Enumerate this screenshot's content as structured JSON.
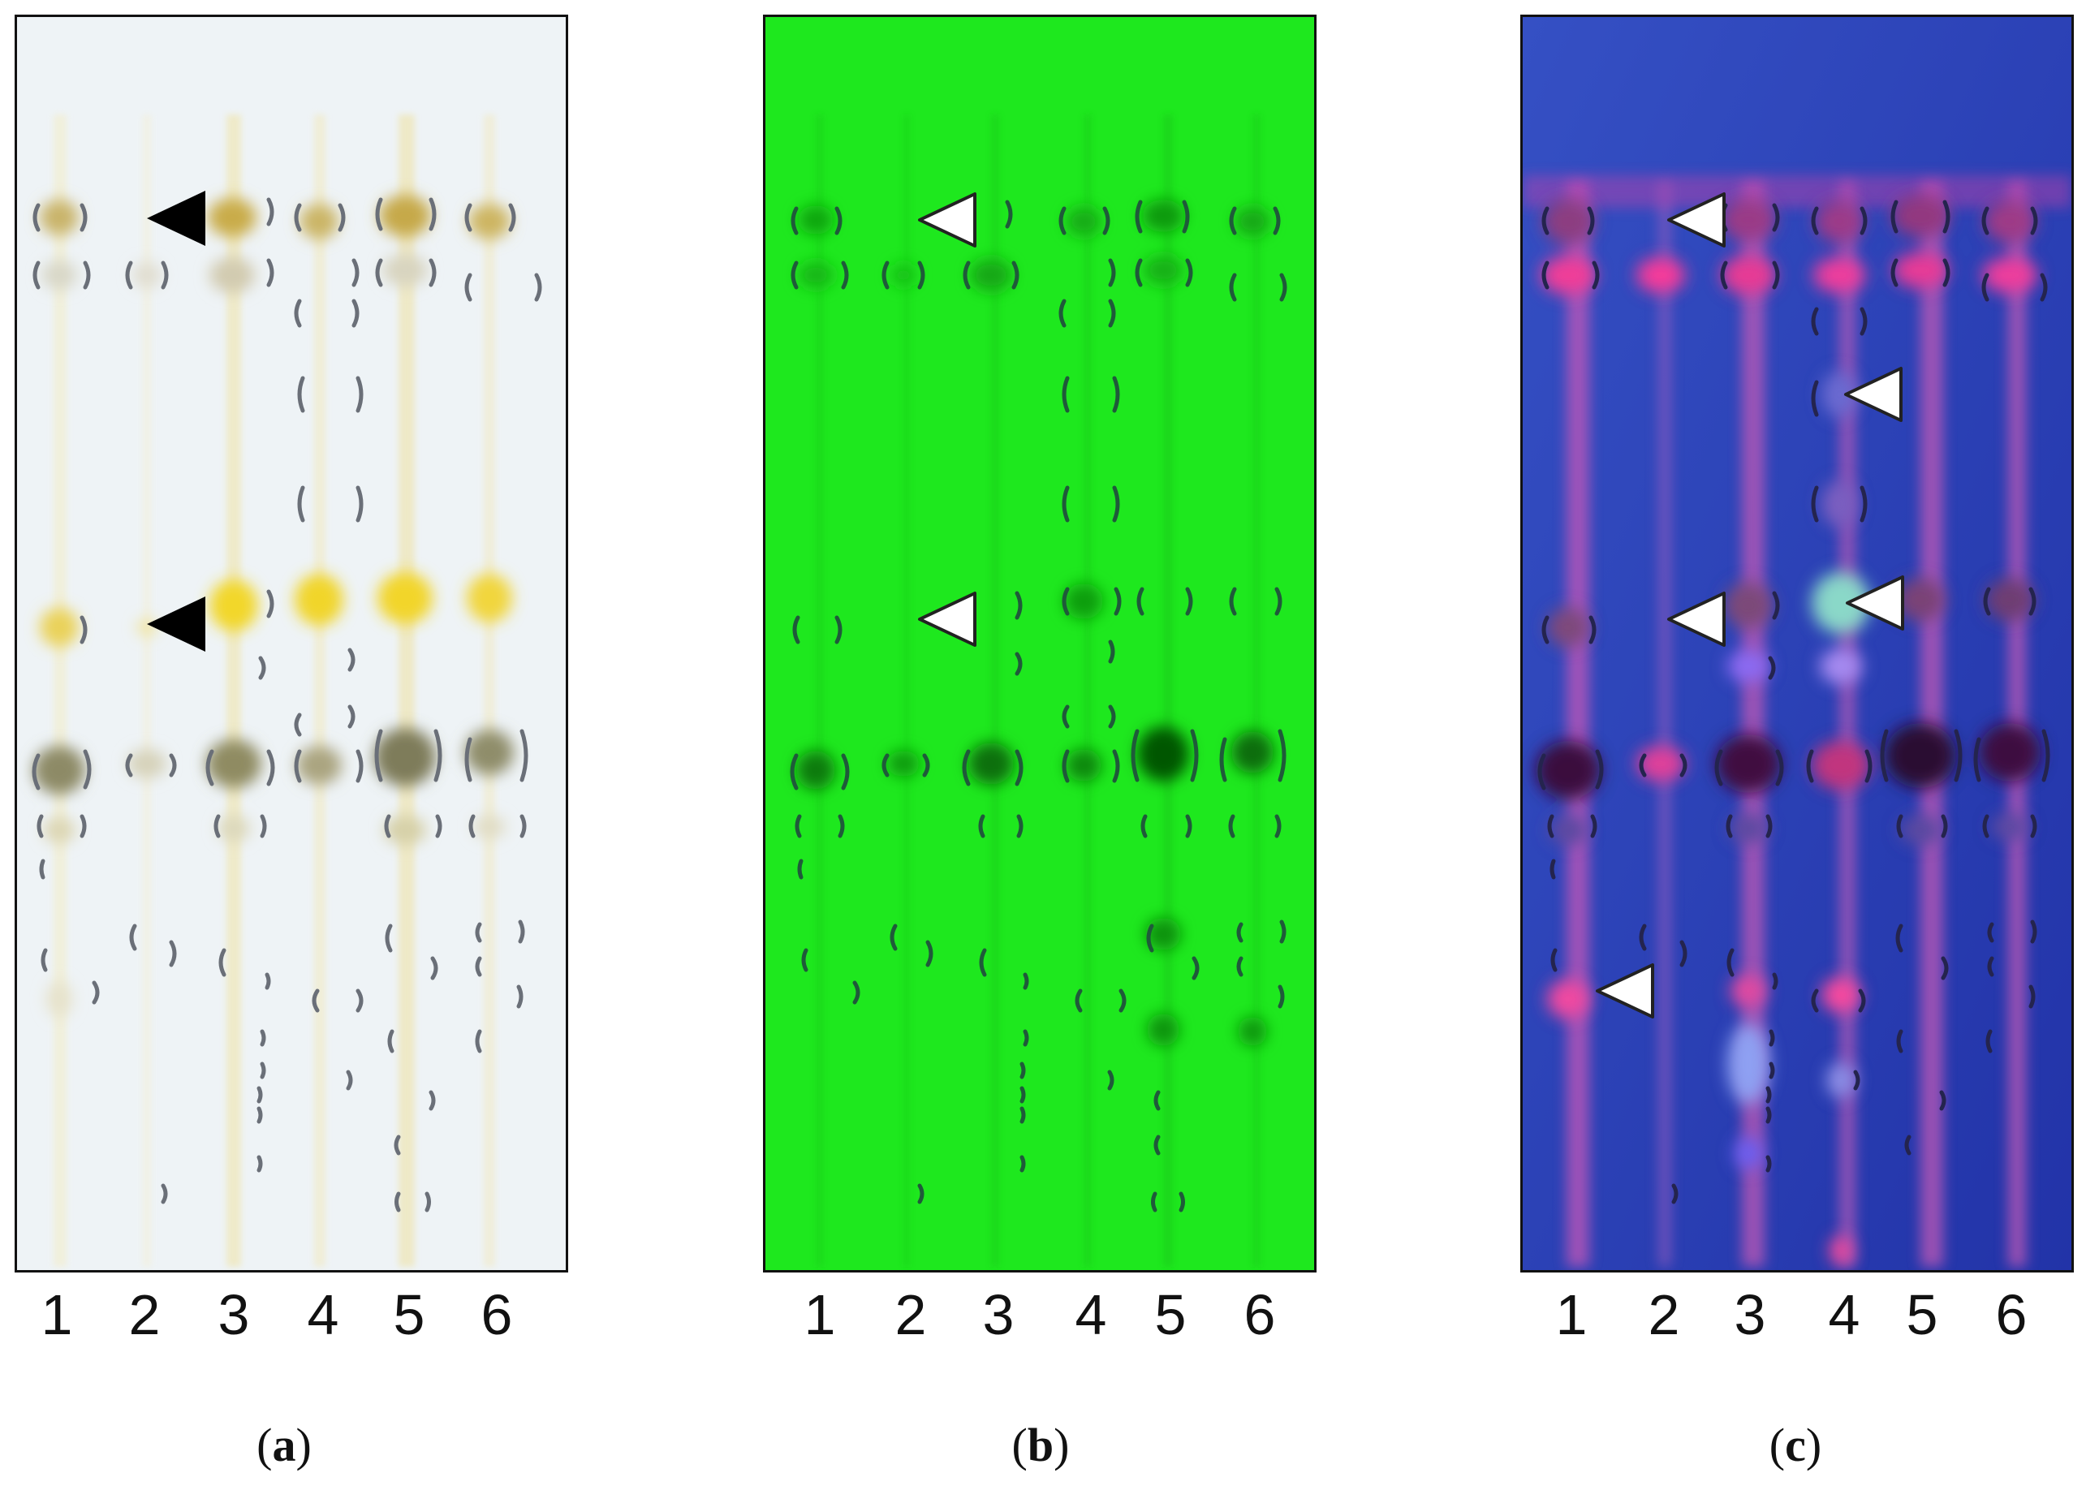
{
  "panels": [
    {
      "id": "a",
      "caption_open": "(",
      "caption_letter": "a",
      "caption_close": ")",
      "background": "#eef3f6",
      "lanes": [
        "1",
        "2",
        "3",
        "4",
        "5",
        "6"
      ],
      "markers": [
        {
          "lane": 2,
          "rf": 0.84,
          "fill": "#000000"
        },
        {
          "lane": 2,
          "rf": 0.51,
          "fill": "#000000"
        }
      ]
    },
    {
      "id": "b",
      "caption_open": "(",
      "caption_letter": "b",
      "caption_close": ")",
      "background": "#1ee81e",
      "lanes": [
        "1",
        "2",
        "3",
        "4",
        "5",
        "6"
      ],
      "markers": [
        {
          "lane": 2,
          "rf": 0.84,
          "fill": "#ffffff"
        },
        {
          "lane": 2,
          "rf": 0.52,
          "fill": "#ffffff"
        }
      ]
    },
    {
      "id": "c",
      "caption_open": "(",
      "caption_letter": "c",
      "caption_close": ")",
      "background": "#2a3fb8",
      "lanes": [
        "1",
        "2",
        "3",
        "4",
        "5",
        "6"
      ],
      "markers": [
        {
          "lane": 2,
          "rf": 0.84,
          "fill": "#ffffff"
        },
        {
          "lane": 4,
          "rf": 0.71,
          "fill": "#ffffff"
        },
        {
          "lane": 4,
          "rf": 0.53,
          "fill": "#ffffff"
        },
        {
          "lane": 2,
          "rf": 0.52,
          "fill": "#ffffff"
        },
        {
          "lane": 1,
          "rf": 0.23,
          "fill": "#ffffff"
        }
      ]
    }
  ]
}
